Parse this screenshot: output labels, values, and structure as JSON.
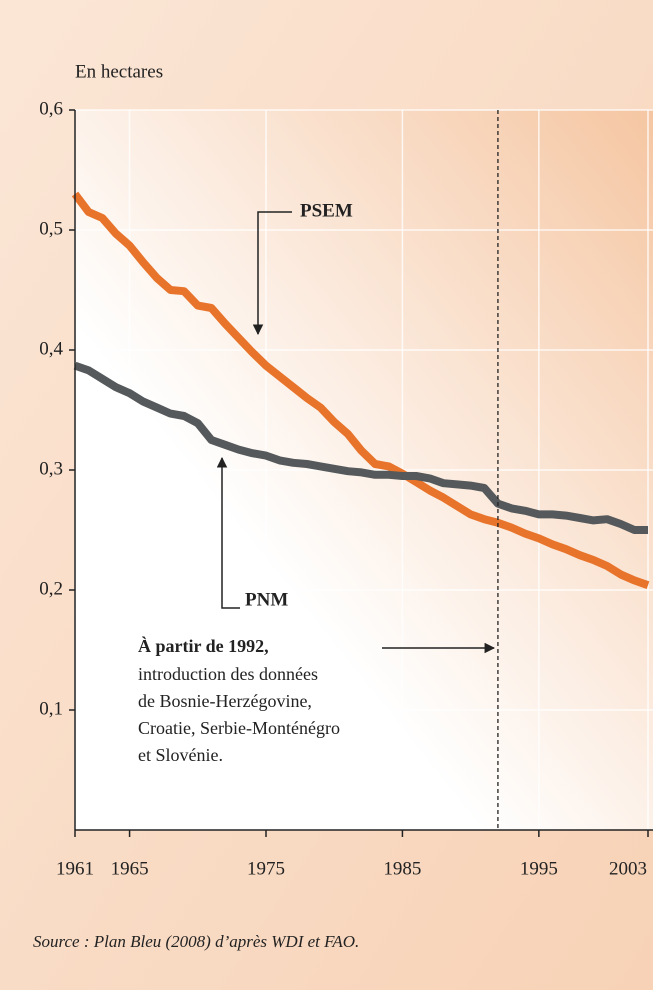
{
  "chart_data": {
    "type": "line",
    "y_label": "En hectares",
    "source": "Source : Plan Bleu (2008) d’après WDI et FAO.",
    "x": [
      1961,
      1962,
      1963,
      1964,
      1965,
      1966,
      1967,
      1968,
      1969,
      1970,
      1971,
      1972,
      1973,
      1974,
      1975,
      1976,
      1977,
      1978,
      1979,
      1980,
      1981,
      1982,
      1983,
      1984,
      1985,
      1986,
      1987,
      1988,
      1989,
      1990,
      1991,
      1992,
      1993,
      1994,
      1995,
      1996,
      1997,
      1998,
      1999,
      2000,
      2001,
      2002,
      2003
    ],
    "series": [
      {
        "name": "PSEM",
        "color": "#e8732a",
        "values": [
          0.53,
          0.515,
          0.51,
          0.497,
          0.487,
          0.473,
          0.46,
          0.45,
          0.449,
          0.437,
          0.435,
          0.422,
          0.41,
          0.398,
          0.387,
          0.378,
          0.369,
          0.36,
          0.352,
          0.34,
          0.33,
          0.316,
          0.305,
          0.303,
          0.297,
          0.29,
          0.283,
          0.277,
          0.27,
          0.263,
          0.259,
          0.256,
          0.252,
          0.247,
          0.243,
          0.238,
          0.234,
          0.229,
          0.225,
          0.22,
          0.213,
          0.208,
          0.204
        ]
      },
      {
        "name": "PNM",
        "color": "#55595b",
        "values": [
          0.387,
          0.383,
          0.376,
          0.369,
          0.364,
          0.357,
          0.352,
          0.347,
          0.345,
          0.339,
          0.325,
          0.321,
          0.317,
          0.314,
          0.312,
          0.308,
          0.306,
          0.305,
          0.303,
          0.301,
          0.299,
          0.298,
          0.296,
          0.296,
          0.295,
          0.295,
          0.293,
          0.289,
          0.288,
          0.287,
          0.285,
          0.272,
          0.268,
          0.266,
          0.263,
          0.263,
          0.262,
          0.26,
          0.258,
          0.259,
          0.255,
          0.25,
          0.25
        ]
      }
    ],
    "xlim": [
      1961,
      2003
    ],
    "xticks": [
      1961,
      1965,
      1975,
      1985,
      1995,
      2003
    ],
    "ylim": [
      0,
      0.6
    ],
    "yticks": [
      {
        "value": 0.1,
        "label": "0,1"
      },
      {
        "value": 0.2,
        "label": "0,2"
      },
      {
        "value": 0.3,
        "label": "0,3"
      },
      {
        "value": 0.4,
        "label": "0,4"
      },
      {
        "value": 0.5,
        "label": "0,5"
      },
      {
        "value": 0.6,
        "label": "0,6"
      }
    ],
    "grid": true,
    "vline": 1992,
    "annotation": {
      "bold": "À partir de 1992,",
      "lines": [
        "introduction des données",
        "de Bosnie-Herzégovine,",
        "Croatie, Serbie-Monténégro",
        "et Slovénie."
      ]
    }
  }
}
